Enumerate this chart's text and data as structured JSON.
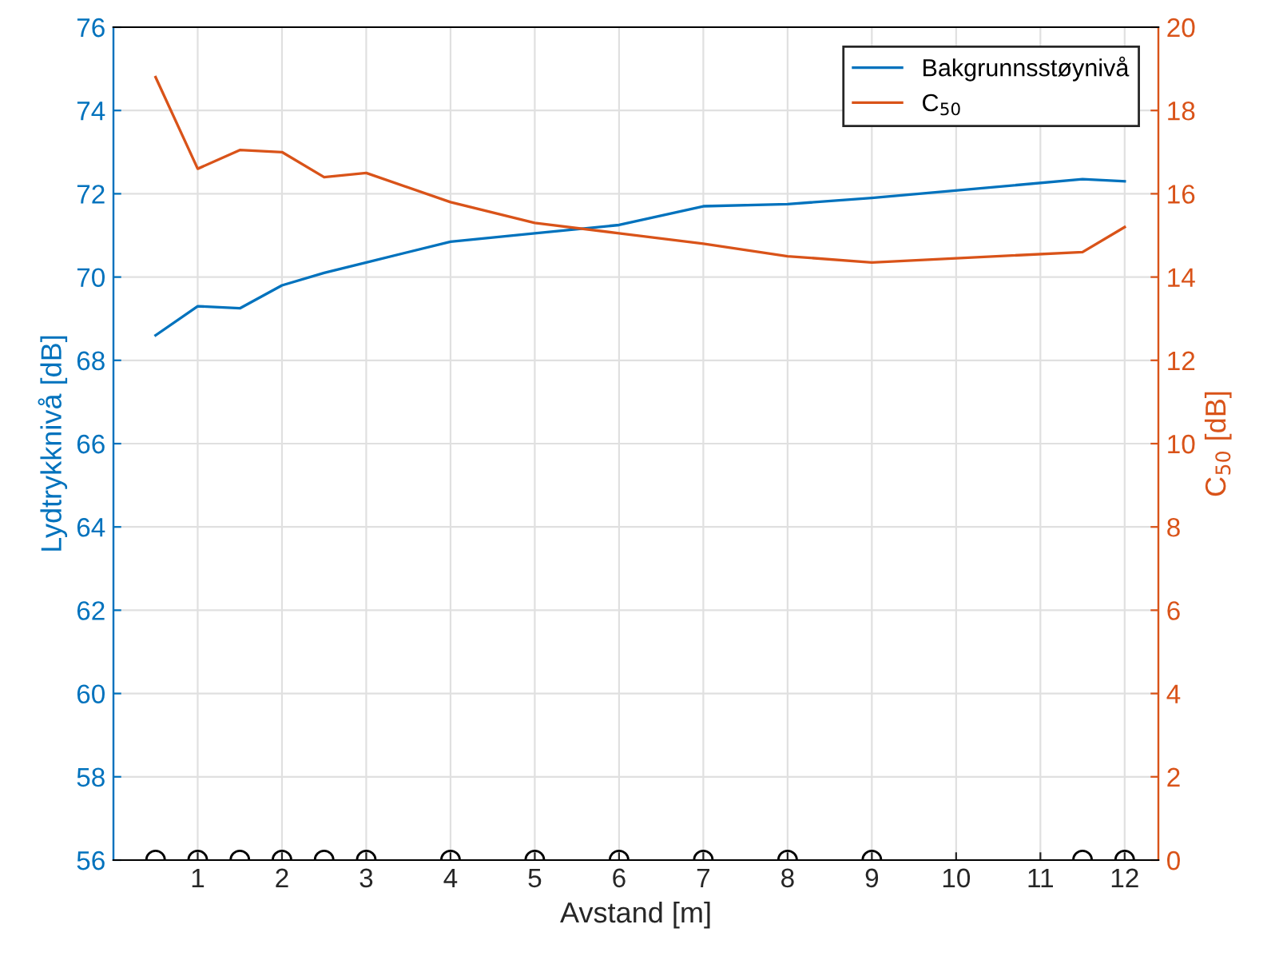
{
  "chart_data": {
    "type": "line",
    "xlabel": "Avstand [m]",
    "ylabel": "Lydtrykknivå [dB]",
    "y2label": "C$_{50}$ [dB]",
    "xlim": [
      0,
      12.4
    ],
    "xticks": [
      1,
      2,
      3,
      4,
      5,
      6,
      7,
      8,
      9,
      10,
      11,
      12
    ],
    "ylim": [
      56,
      76
    ],
    "yticks": [
      56,
      58,
      60,
      62,
      64,
      66,
      68,
      70,
      72,
      74,
      76
    ],
    "y2lim": [
      0,
      20
    ],
    "y2ticks": [
      0,
      2,
      4,
      6,
      8,
      10,
      12,
      14,
      16,
      18,
      20
    ],
    "grid": true,
    "legend": "top right",
    "line_style": "solid",
    "series": [
      {
        "name": "Bakgrunnsstøynivå",
        "color": "#0072bd",
        "axis": "y",
        "x": [
          0.5,
          1,
          1.5,
          2,
          2.5,
          3,
          4,
          5,
          6,
          7,
          8,
          9,
          11.5,
          12
        ],
        "values": [
          68.6,
          69.3,
          69.25,
          69.8,
          70.1,
          70.35,
          70.85,
          71.05,
          71.25,
          71.7,
          71.75,
          71.9,
          72.35,
          72.3
        ]
      },
      {
        "name": "C$_{50}$",
        "color": "#d95319",
        "axis": "y2",
        "x": [
          0.5,
          1,
          1.5,
          2,
          2.5,
          3,
          4,
          5,
          6,
          7,
          8,
          9,
          11.5,
          12
        ],
        "values": [
          18.8,
          16.6,
          17.05,
          17.0,
          16.4,
          16.5,
          15.8,
          15.3,
          15.05,
          14.8,
          14.5,
          14.35,
          14.6,
          15.2
        ]
      },
      {
        "type": "scatter",
        "marker": "circle",
        "color": "#000000",
        "axis": "y",
        "x": [
          0.5,
          1,
          1.5,
          2,
          2.5,
          3,
          4,
          5,
          6,
          7,
          8,
          9,
          11.5,
          12
        ],
        "values": [
          56,
          56,
          56,
          56,
          56,
          56,
          56,
          56,
          56,
          56,
          56,
          56,
          56,
          56
        ]
      }
    ]
  }
}
